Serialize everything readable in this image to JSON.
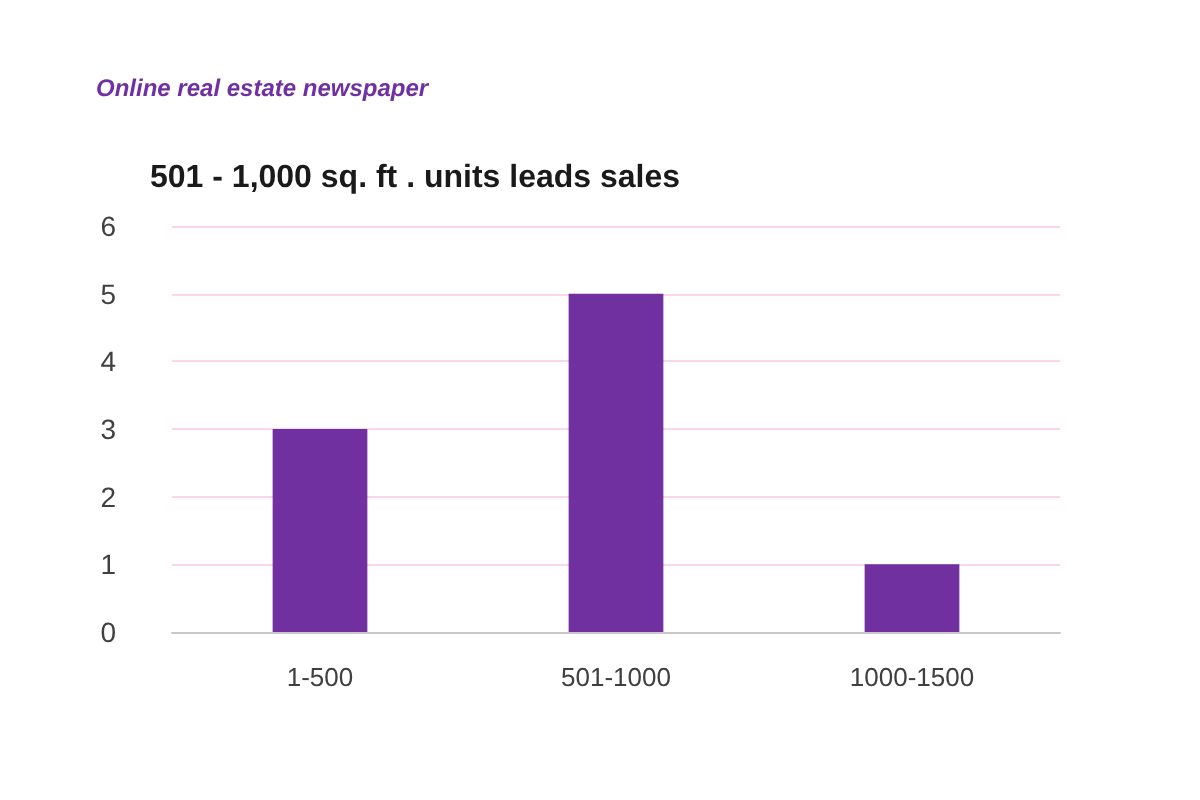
{
  "chart_data": {
    "type": "bar",
    "title": "501 - 1,000 sq. ft . units leads sales",
    "annotations": [
      "Online real estate newspaper"
    ],
    "categories": [
      "1-500",
      "501-1000",
      "1000-1500"
    ],
    "values": [
      3,
      5,
      1
    ],
    "color": "#7030a0",
    "ylim": [
      0,
      6
    ],
    "yticks": [
      0,
      1,
      2,
      3,
      4,
      5,
      6
    ],
    "grid": "y"
  }
}
